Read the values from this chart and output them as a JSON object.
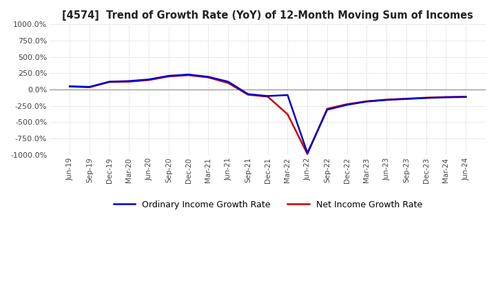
{
  "title": "[4574]  Trend of Growth Rate (YoY) of 12-Month Moving Sum of Incomes",
  "ylim": [
    -1000,
    1000
  ],
  "yticks": [
    1000,
    750,
    500,
    250,
    0,
    -250,
    -500,
    -750,
    -1000
  ],
  "ytick_labels": [
    "1000.0%",
    "750.0%",
    "500.0%",
    "250.0%",
    "0.0%",
    "-250.0%",
    "-500.0%",
    "-750.0%",
    "-1000.0%"
  ],
  "background_color": "#ffffff",
  "grid_color": "#bbbbbb",
  "ordinary_color": "#0000cc",
  "net_color": "#cc0000",
  "legend_ordinary": "Ordinary Income Growth Rate",
  "legend_net": "Net Income Growth Rate",
  "x_labels": [
    "Jun-19",
    "Sep-19",
    "Dec-19",
    "Mar-20",
    "Jun-20",
    "Sep-20",
    "Dec-20",
    "Mar-21",
    "Jun-21",
    "Sep-21",
    "Dec-21",
    "Mar-22",
    "Jun-22",
    "Sep-22",
    "Dec-22",
    "Mar-23",
    "Jun-23",
    "Sep-23",
    "Dec-23",
    "Mar-24",
    "Jun-24"
  ],
  "ordinary_income_gr": [
    50,
    40,
    120,
    130,
    155,
    210,
    230,
    195,
    120,
    -70,
    -100,
    -85,
    -975,
    -310,
    -235,
    -185,
    -160,
    -145,
    -130,
    -120,
    -115
  ],
  "net_income_gr": [
    45,
    35,
    115,
    120,
    145,
    200,
    220,
    185,
    100,
    -80,
    -110,
    -380,
    -990,
    -295,
    -225,
    -180,
    -155,
    -140,
    -125,
    -115,
    -110
  ]
}
